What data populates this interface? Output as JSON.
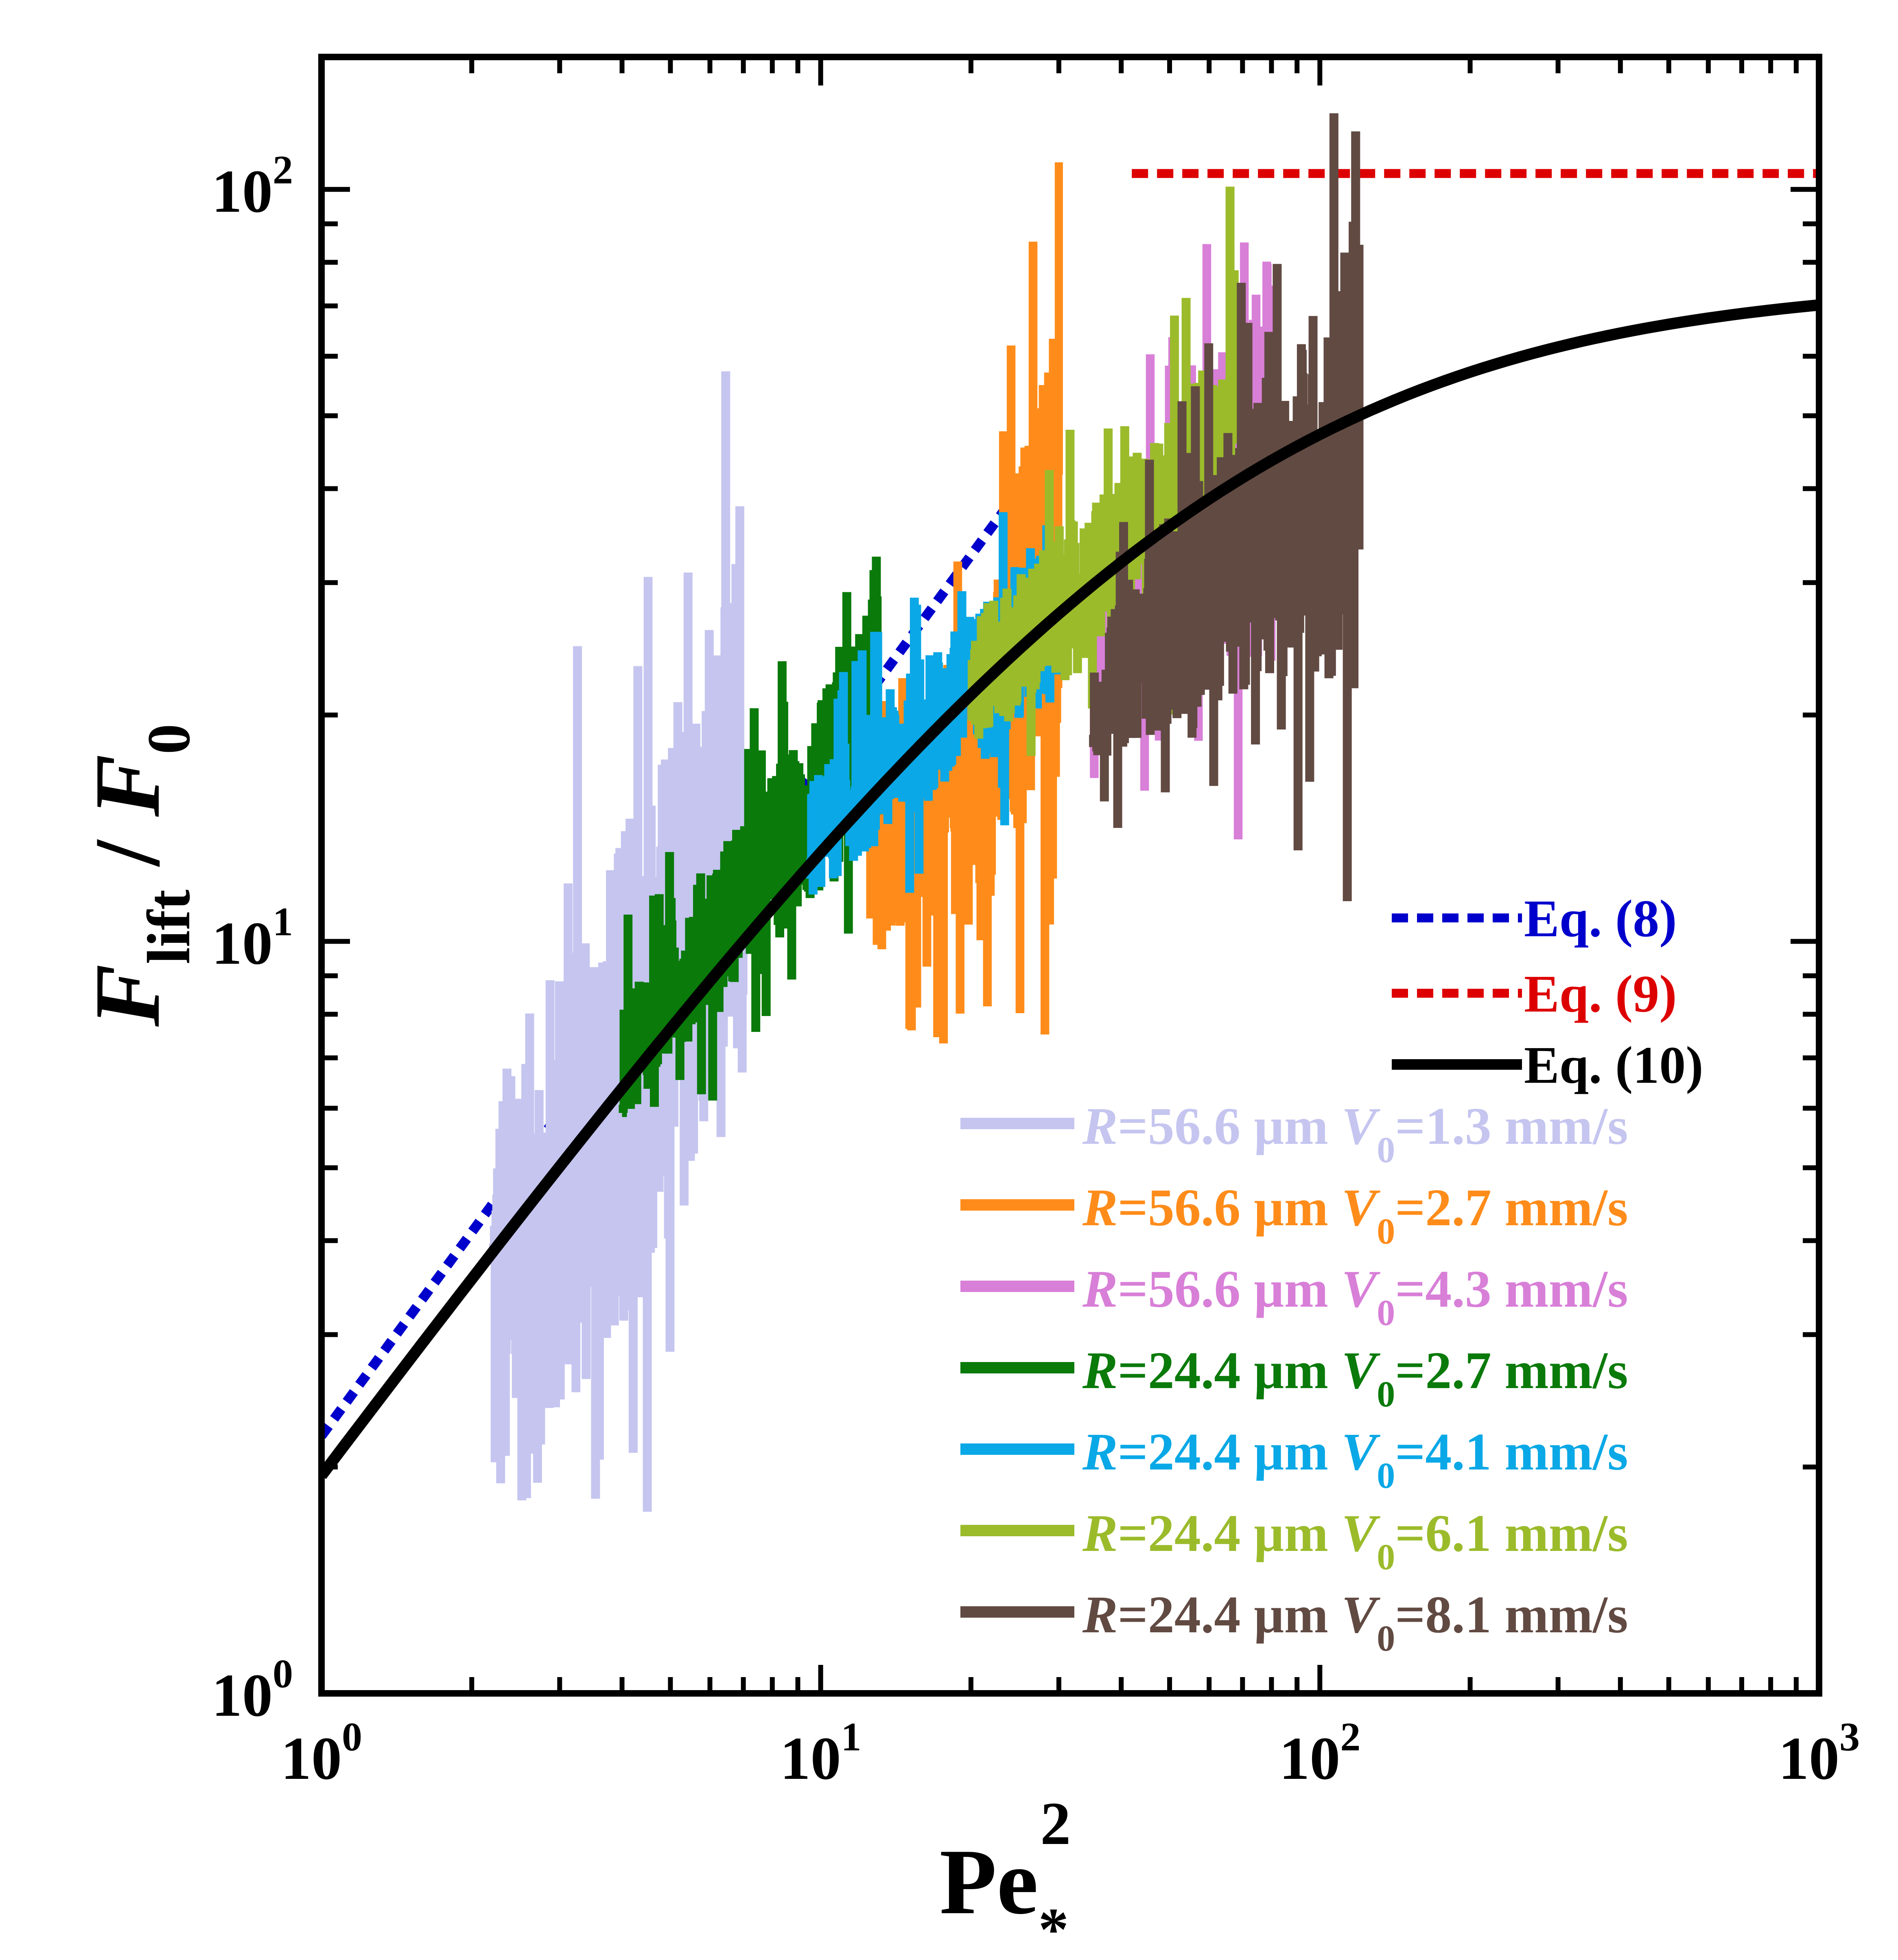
{
  "chart_data": {
    "type": "line",
    "title": "",
    "xscale": "log",
    "yscale": "log",
    "xlim": [
      1,
      1000
    ],
    "ylim": [
      1,
      150
    ],
    "xlabel": {
      "base": "Pe",
      "sub": "*",
      "sup": "2"
    },
    "ylabel": {
      "num": "F",
      "num_sub": "lift",
      "sep": " / ",
      "den": "F",
      "den_sub": "0"
    },
    "x_ticks": [
      {
        "value": 1,
        "base": "10",
        "exp": "0"
      },
      {
        "value": 10,
        "base": "10",
        "exp": "1"
      },
      {
        "value": 100,
        "base": "10",
        "exp": "2"
      },
      {
        "value": 1000,
        "base": "10",
        "exp": "3"
      }
    ],
    "y_ticks": [
      {
        "value": 1,
        "base": "10",
        "exp": "0"
      },
      {
        "value": 10,
        "base": "10",
        "exp": "1"
      },
      {
        "value": 100,
        "base": "10",
        "exp": "2"
      }
    ],
    "legend_position": "bottom-right",
    "equations": [
      {
        "name": "Eq8",
        "label": "Eq. (8)",
        "color": "#0000cc",
        "style": "dotted",
        "kind": "power",
        "coef": 2.2,
        "exp": 0.9,
        "xrange": [
          1,
          30
        ]
      },
      {
        "name": "Eq9",
        "label": "Eq. (9)",
        "color": "#dd0000",
        "style": "dashed",
        "kind": "const",
        "value": 105,
        "xrange": [
          42,
          1000
        ]
      },
      {
        "name": "Eq10",
        "label": "Eq. (10)",
        "color": "#000000",
        "style": "solid",
        "kind": "saturating",
        "a": 2.0,
        "b": 0.9,
        "c": 0.0265,
        "xrange": [
          1,
          1000
        ]
      }
    ],
    "series": [
      {
        "name": "R=56.6 µm V0=1.3 mm/s",
        "R": "56.6",
        "V": "1.3",
        "color": "#c5c5f0",
        "x": [
          2.2,
          2.6,
          3.0,
          3.5,
          4.0,
          4.5,
          5.0,
          5.5,
          6.0,
          6.5,
          7.0
        ],
        "y": [
          3.2,
          3.8,
          4.6,
          5.6,
          6.4,
          7.6,
          8.8,
          10.0,
          11.2,
          12.8,
          14.5
        ],
        "spread": [
          0.3,
          0.32,
          0.33,
          0.32,
          0.33,
          0.34,
          0.33,
          0.33,
          0.34,
          0.35,
          0.4
        ]
      },
      {
        "name": "R=56.6 µm V0=2.7 mm/s",
        "R": "56.6",
        "V": "2.7",
        "color": "#ff8c1a",
        "x": [
          12.5,
          15.0,
          17.5,
          20.0,
          22.5,
          25.0,
          27.5,
          30.0
        ],
        "y": [
          13.0,
          14.0,
          14.8,
          16.0,
          19.0,
          25.0,
          30.0,
          35.0
        ],
        "spread": [
          0.1,
          0.12,
          0.14,
          0.18,
          0.2,
          0.25,
          0.3,
          0.32
        ]
      },
      {
        "name": "R=56.6 µm V0=4.3 mm/s",
        "R": "56.6",
        "V": "4.3",
        "color": "#d87fd8",
        "x": [
          35,
          40,
          45,
          50,
          55,
          60,
          65,
          70,
          75,
          80
        ],
        "y": [
          24,
          28,
          31,
          33,
          35,
          37,
          38,
          40,
          42,
          44
        ],
        "spread": [
          0.1,
          0.12,
          0.13,
          0.14,
          0.15,
          0.18,
          0.2,
          0.22,
          0.25,
          0.28
        ]
      },
      {
        "name": "R=24.4 µm V0=2.7 mm/s",
        "R": "24.4",
        "V": "2.7",
        "color": "#0a7a0a",
        "x": [
          4.0,
          5.0,
          6.0,
          7.0,
          8.0,
          9.0,
          10.0,
          11.0,
          12.0,
          13.0
        ],
        "y": [
          7.0,
          8.6,
          10.2,
          11.6,
          13.0,
          14.2,
          15.4,
          17.0,
          19.0,
          22.0
        ],
        "spread": [
          0.08,
          0.09,
          0.1,
          0.1,
          0.11,
          0.12,
          0.13,
          0.14,
          0.15,
          0.18
        ]
      },
      {
        "name": "R=24.4 µm V0=4.1 mm/s",
        "R": "24.4",
        "V": "4.1",
        "color": "#0aa8e6",
        "x": [
          9.5,
          11.0,
          13.0,
          15.0,
          17.5,
          20.0,
          22.5,
          25.0,
          27.5,
          30.0
        ],
        "y": [
          13.5,
          15.0,
          16.8,
          18.3,
          19.8,
          21.5,
          23.0,
          24.8,
          26.5,
          28.5
        ],
        "spread": [
          0.08,
          0.08,
          0.09,
          0.09,
          0.1,
          0.1,
          0.11,
          0.11,
          0.12,
          0.14
        ]
      },
      {
        "name": "R=24.4 µm V0=6.1 mm/s",
        "R": "24.4",
        "V": "6.1",
        "color": "#9bbb2b",
        "x": [
          20,
          25,
          30,
          35,
          40,
          45,
          50,
          55,
          60,
          65,
          68
        ],
        "y": [
          22,
          25,
          28,
          30,
          33,
          35,
          37,
          40,
          43,
          47,
          52
        ],
        "spread": [
          0.08,
          0.09,
          0.1,
          0.1,
          0.11,
          0.12,
          0.13,
          0.14,
          0.15,
          0.17,
          0.2
        ]
      },
      {
        "name": "R=24.4 µm V0=8.1 mm/s",
        "R": "24.4",
        "V": "8.1",
        "color": "#614a42",
        "x": [
          35,
          40,
          50,
          60,
          70,
          80,
          90,
          100,
          110,
          120
        ],
        "y": [
          20,
          23,
          27,
          30,
          33,
          36,
          38,
          40,
          43,
          46
        ],
        "spread": [
          0.06,
          0.1,
          0.14,
          0.16,
          0.18,
          0.2,
          0.22,
          0.26,
          0.3,
          0.34
        ]
      }
    ]
  }
}
